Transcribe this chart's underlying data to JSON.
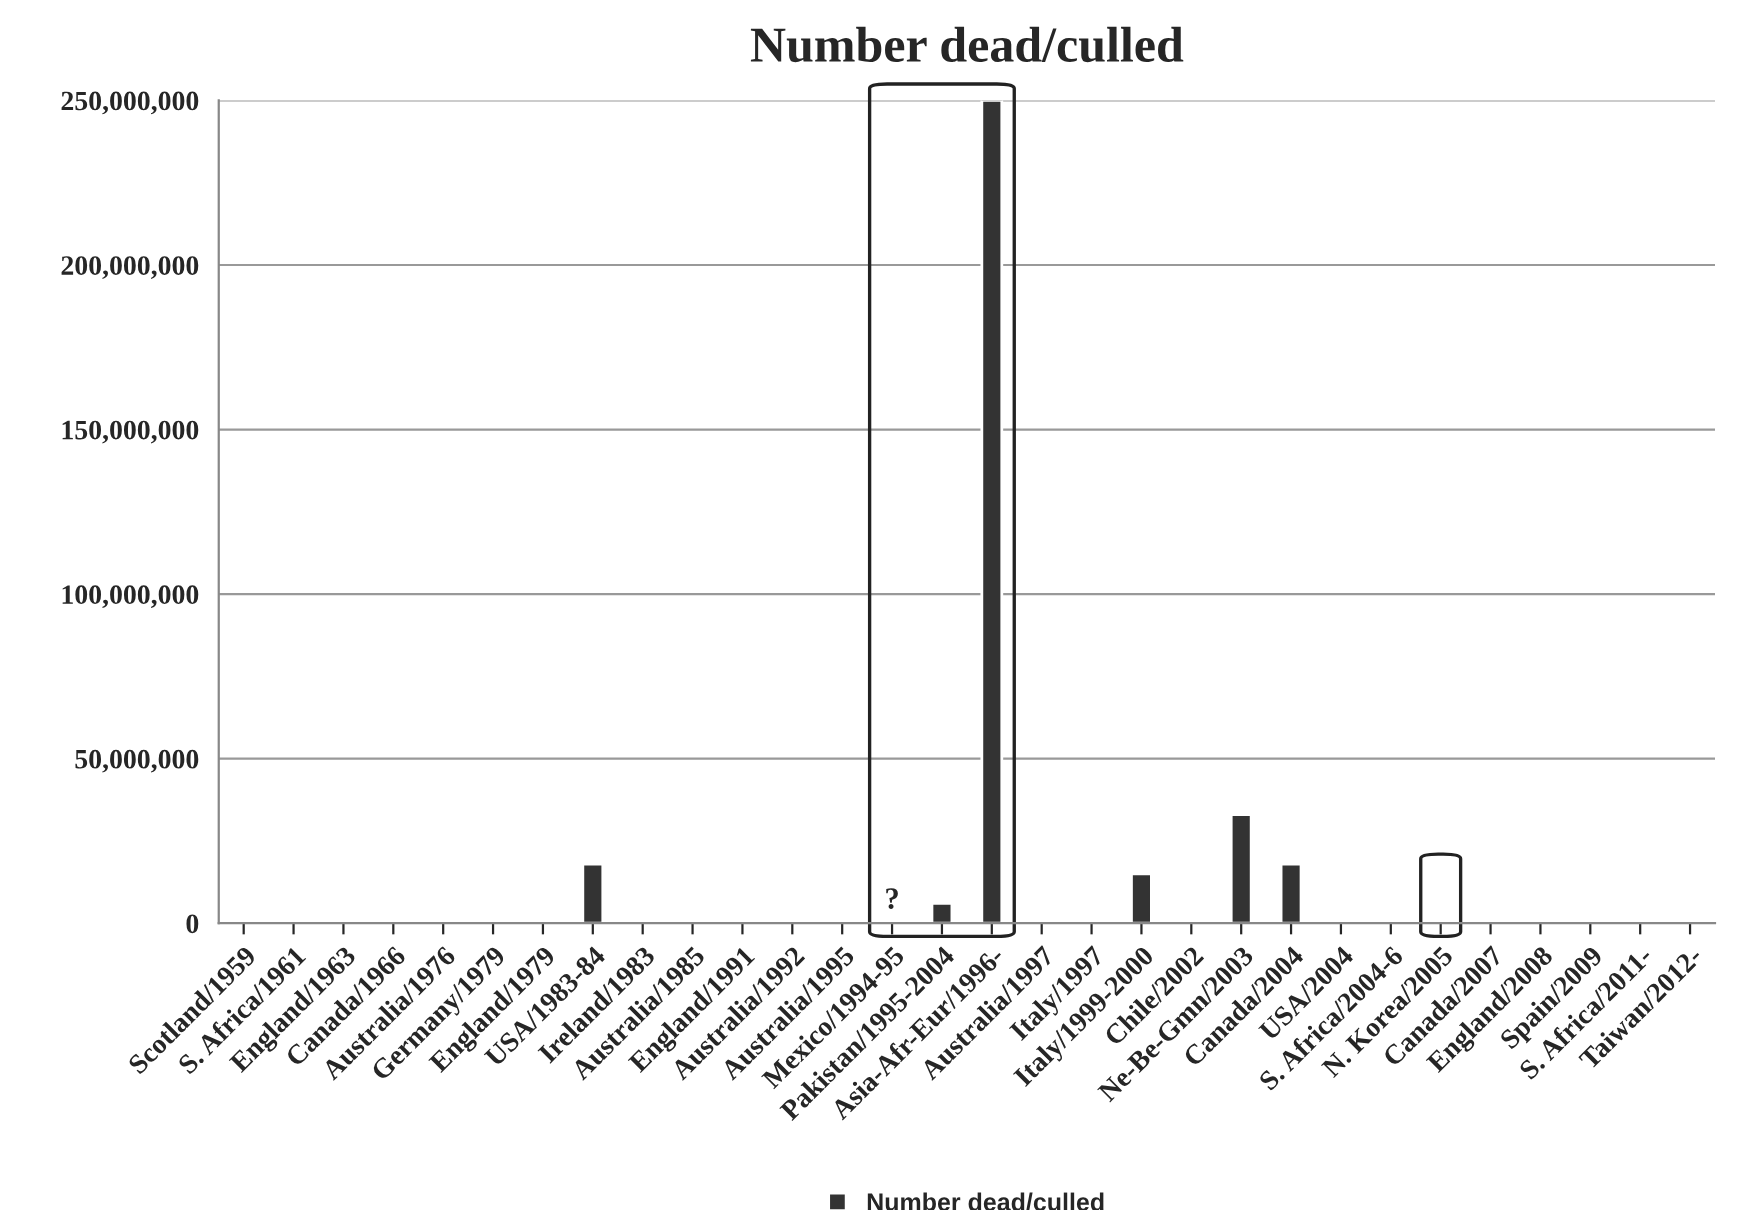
{
  "chart_data": {
    "type": "bar",
    "title": "Number dead/culled",
    "categories": [
      "Scotland/1959",
      "S. Africa/1961",
      "England/1963",
      "Canada/1966",
      "Australia/1976",
      "Germany/1979",
      "England/1979",
      "USA/1983-84",
      "Ireland/1983",
      "Australia/1985",
      "England/1991",
      "Australia/1992",
      "Australia/1995",
      "Mexico/1994-95",
      "Pakistan/1995-2004",
      "Asia-Afr-Eur/1996-",
      "Australia/1997",
      "Italy/1997",
      "Italy/1999-2000",
      "Chile/2002",
      "Ne-Be-Gmn/2003",
      "Canada/2004",
      "USA/2004",
      "S. Africa/2004-6",
      "N. Korea/2005",
      "Canada/2007",
      "England/2008",
      "Spain/2009",
      "S. Africa/2011-",
      "Taiwan/2012-"
    ],
    "series": [
      {
        "name": "Number dead/culled",
        "color": "#333333",
        "values": [
          null,
          null,
          null,
          null,
          null,
          400000,
          null,
          18000000,
          null,
          null,
          null,
          null,
          null,
          null,
          6000000,
          250000000,
          null,
          null,
          15000000,
          500000,
          33000000,
          18000000,
          null,
          null,
          null,
          null,
          null,
          null,
          null,
          null
        ]
      }
    ],
    "ylim": [
      0,
      250000000
    ],
    "yticks": [
      {
        "value": 0,
        "label": "0"
      },
      {
        "value": 50000000,
        "label": "50,000,000"
      },
      {
        "value": 100000000,
        "label": "100,000,000"
      },
      {
        "value": 150000000,
        "label": "150,000,000"
      },
      {
        "value": 200000000,
        "label": "200,000,000"
      },
      {
        "value": 250000000,
        "label": "250,000,000"
      }
    ],
    "annotations": [
      "?"
    ],
    "grid": "y",
    "legend": "bottom"
  }
}
